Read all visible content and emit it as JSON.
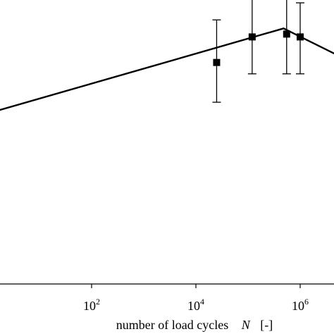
{
  "chart_data": {
    "type": "scatter",
    "x_scale": "log",
    "xlabel": {
      "text": "number of load cycles",
      "symbol": "N",
      "unit": "[-]"
    },
    "x_ticks": [
      {
        "value": 100,
        "base": "10",
        "exp": "2"
      },
      {
        "value": 10000,
        "base": "10",
        "exp": "4"
      },
      {
        "value": 1000000,
        "base": "10",
        "exp": "6"
      }
    ],
    "xlim": [
      1,
      10000000
    ],
    "ylim": [
      0,
      1
    ],
    "grid": false,
    "series": [
      {
        "mode": "markers",
        "marker": "square",
        "points": [
          {
            "x": 25000,
            "y": 0.78,
            "err_low": 0.64,
            "err_high": 0.93
          },
          {
            "x": 120000,
            "y": 0.87,
            "err_low": 0.74,
            "err_high": 1.01
          },
          {
            "x": 550000,
            "y": 0.88,
            "err_low": 0.74,
            "err_high": 1.02
          },
          {
            "x": 1000000,
            "y": 0.87,
            "err_low": 0.74,
            "err_high": 0.99
          }
        ]
      },
      {
        "mode": "line",
        "points": [
          {
            "x": 1,
            "y": 0.6
          },
          {
            "x": 480000,
            "y": 0.9
          },
          {
            "x": 6000000,
            "y": 0.8
          }
        ]
      }
    ]
  }
}
